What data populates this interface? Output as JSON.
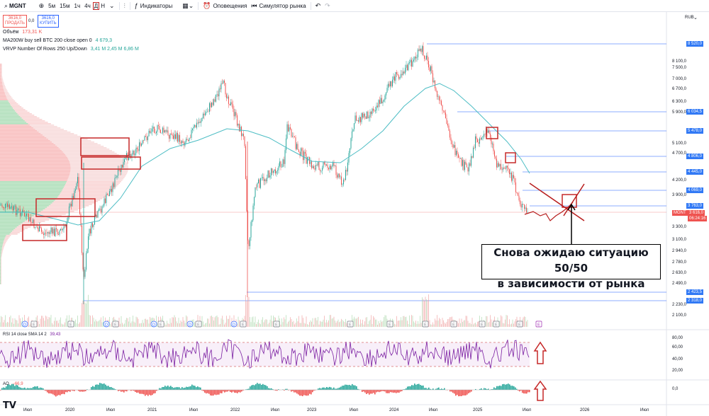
{
  "toolbar": {
    "symbol": "MGNT",
    "intervals": [
      "5м",
      "15м",
      "1ч",
      "4ч",
      "Д",
      "Н"
    ],
    "active_interval": "Д",
    "indicators_label": "Индикаторы",
    "alerts_label": "Оповещения",
    "replay_label": "Симулятор рынка"
  },
  "trade": {
    "sell_price": "3616,0",
    "sell_label": "ПРОДАТЬ",
    "spread": "0,0",
    "buy_price": "3616,0",
    "buy_label": "КУПИТЬ"
  },
  "legends": [
    {
      "name": "Объём",
      "value": "173,31 K"
    },
    {
      "name": "MA200W buy sell BTC 200 close open 0",
      "value": "4 679,3"
    },
    {
      "name": "VRVP Number Of Rows 250 Up/Down",
      "value": "3,41 M  2,45 M  6,86 M"
    }
  ],
  "currency": "RUB",
  "price_axis": [
    "8 100,0",
    "7 500,0",
    "7 000,0",
    "6 700,0",
    "6 300,0",
    "5 900,0",
    "5 100,0",
    "4 700,0",
    "4 200,0",
    "3 900,0",
    "3 300,0",
    "3 100,0",
    "2 940,0",
    "2 780,0",
    "2 630,0",
    "2 490,0",
    "2 230,0",
    "2 100,0"
  ],
  "level_labels": [
    "8 520,0",
    "6 034,5",
    "5 478,0",
    "4 806,0",
    "4 445,0",
    "4 069,0",
    "3 763,0",
    "2 423,5",
    "2 318,0"
  ],
  "last_price": {
    "symbol": "MGNT",
    "price": "3 616,0",
    "countdown": "06:24:16"
  },
  "x_axis": [
    "Июл",
    "2020",
    "Июл",
    "2021",
    "Июл",
    "2022",
    "Июл",
    "2023",
    "Июл",
    "2024",
    "Июл",
    "2025",
    "Июл",
    "2026",
    "Июл"
  ],
  "annotation": {
    "line1": "Снова ожидаю ситуацию 50/50",
    "line2": "в зависимости от рынка"
  },
  "rsi": {
    "label": "RSI 14 close SMA 14 2",
    "value": "39,43",
    "axis": [
      "80,00",
      "60,00",
      "40,00",
      "20,00"
    ]
  },
  "ao": {
    "label": "AO",
    "value": "−66,9",
    "axis": [
      "0,0"
    ]
  },
  "colors": {
    "up": "#26a69a",
    "down": "#ef5350",
    "ma": "#4dbdc4",
    "level": "#2962ff",
    "highlight": "#c62828",
    "rsi": "#7b1fa2"
  }
}
